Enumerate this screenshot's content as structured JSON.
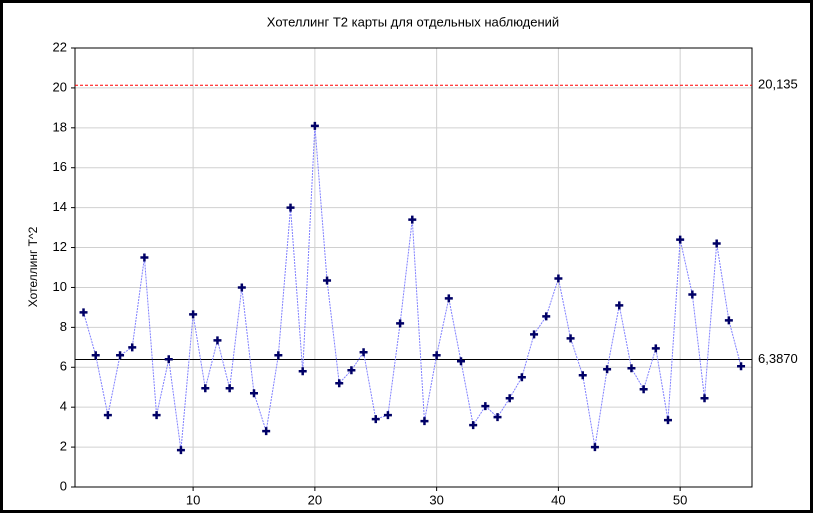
{
  "chart_data": {
    "type": "line",
    "title": "Хотеллинг Т2 карты для отдельных наблюдений",
    "ylabel": "Хотеллинг Т^2",
    "x": [
      1,
      2,
      3,
      4,
      5,
      6,
      7,
      8,
      9,
      10,
      11,
      12,
      13,
      14,
      15,
      16,
      17,
      18,
      19,
      20,
      21,
      22,
      23,
      24,
      25,
      26,
      27,
      28,
      29,
      30,
      31,
      32,
      33,
      34,
      35,
      36,
      37,
      38,
      39,
      40,
      41,
      42,
      43,
      44,
      45,
      46,
      47,
      48,
      49,
      50,
      51,
      52,
      53,
      54,
      55
    ],
    "values": [
      8.75,
      6.6,
      3.6,
      6.6,
      7.0,
      11.5,
      3.6,
      6.4,
      1.85,
      8.65,
      4.95,
      7.35,
      4.95,
      10.0,
      4.7,
      2.8,
      6.6,
      14.0,
      5.8,
      18.1,
      10.35,
      5.2,
      5.85,
      6.75,
      3.4,
      3.6,
      8.2,
      13.4,
      3.3,
      6.6,
      9.45,
      6.3,
      3.1,
      4.05,
      3.5,
      4.45,
      5.5,
      7.65,
      8.55,
      10.45,
      7.45,
      5.6,
      2.0,
      5.9,
      9.1,
      5.95,
      4.9,
      6.95,
      3.35,
      12.4,
      9.65,
      4.45,
      12.2,
      8.35,
      6.05
    ],
    "line_color": "#8080ff",
    "marker_color": "#000066",
    "xlim": [
      0.3,
      55.9
    ],
    "xticks": [
      10,
      20,
      30,
      40,
      50
    ],
    "ylim": [
      0,
      22
    ],
    "yticks": [
      0,
      2,
      4,
      6,
      8,
      10,
      12,
      14,
      16,
      18,
      20,
      22
    ],
    "grid": true,
    "ref_lines": [
      {
        "value": 20.135,
        "label": "20,135",
        "color": "#ff0000",
        "style": "dashed"
      },
      {
        "value": 6.387,
        "label": "6,3870",
        "color": "#000000",
        "style": "solid"
      }
    ]
  }
}
